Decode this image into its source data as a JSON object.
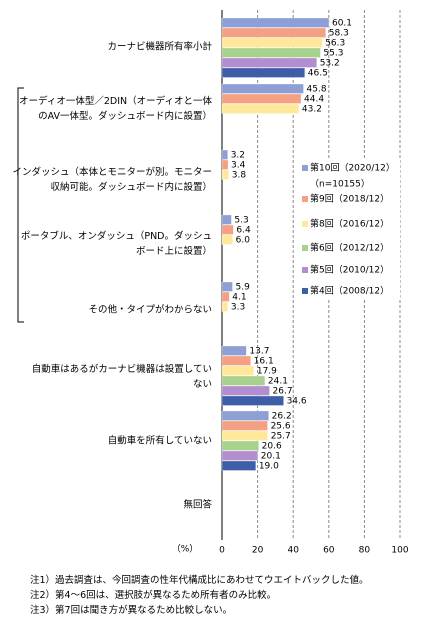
{
  "chart_data": {
    "type": "bar",
    "orientation": "horizontal",
    "categories": [
      "カーナビ機器所有率小計",
      "オーディオ一体型／2DIN（オーディオと一体\nのAV一体型。ダッシュボード内に設置）",
      "インダッシュ（本体とモニターが別。モニター\n収納可能。ダッシュボード内に設置）",
      "ポータブル、オンダッシュ（PND。ダッシュ\nボード上に設置）",
      "その他・タイプがわからない",
      "自動車はあるがカーナビ機器は設置してい\nない",
      "自動車を所有していない",
      "無回答"
    ],
    "series": [
      {
        "name": "第10回（2020/12）",
        "color": "#8e9fd6",
        "values": [
          60.1,
          45.8,
          3.2,
          5.3,
          5.9,
          13.7,
          26.2,
          null
        ],
        "value_labels": [
          "60.1",
          "45.8",
          "3.2",
          "5.3",
          "5.9",
          "13.7",
          "26.2",
          null
        ]
      },
      {
        "name": "第9回（2018/12）",
        "color": "#f4a183",
        "values": [
          58.3,
          44.4,
          3.4,
          6.4,
          4.1,
          16.1,
          25.6,
          null
        ],
        "value_labels": [
          "58.3",
          "44.4",
          "3.4",
          "6.4",
          "4.1",
          "16.1",
          "25.6",
          null
        ]
      },
      {
        "name": "第8回（2016/12）",
        "color": "#ffe89a",
        "values": [
          56.3,
          43.2,
          3.8,
          6.0,
          3.3,
          17.9,
          25.7,
          null
        ],
        "value_labels": [
          "56.3",
          "43.2",
          "3.8",
          "6.0",
          "3.3",
          "17.9",
          "25.7",
          null
        ]
      },
      {
        "name": "第6回（2012/12）",
        "color": "#a9d18e",
        "values": [
          55.3,
          null,
          null,
          null,
          null,
          24.1,
          20.6,
          null
        ],
        "value_labels": [
          "55.3",
          null,
          null,
          null,
          null,
          "24.1",
          "20.6",
          null
        ]
      },
      {
        "name": "第5回（2010/12）",
        "color": "#b28ecf",
        "values": [
          53.2,
          null,
          null,
          null,
          null,
          26.7,
          20.1,
          null
        ],
        "value_labels": [
          "53.2",
          null,
          null,
          null,
          null,
          "26.7",
          "20.1",
          null
        ]
      },
      {
        "name": "第4回（2008/12）",
        "color": "#3e5ea8",
        "values": [
          46.5,
          null,
          null,
          null,
          null,
          34.6,
          19.0,
          null
        ],
        "value_labels": [
          "46.5",
          null,
          null,
          null,
          null,
          "34.6",
          "19.0",
          null
        ]
      }
    ],
    "legend_note": "（n=10155）",
    "xlabel": "（%）",
    "xlim": [
      0,
      100
    ],
    "xticks": [
      0,
      20,
      40,
      60,
      80,
      100
    ],
    "grid": true,
    "notes": [
      "注1）過去調査は、今回調査の性年代構成比にあわせてウエイトバックした値。",
      "注2）第4～6回は、選択肢が異なるため所有者のみ比較。",
      "注3）第7回は聞き方が異なるため比較しない。"
    ]
  }
}
